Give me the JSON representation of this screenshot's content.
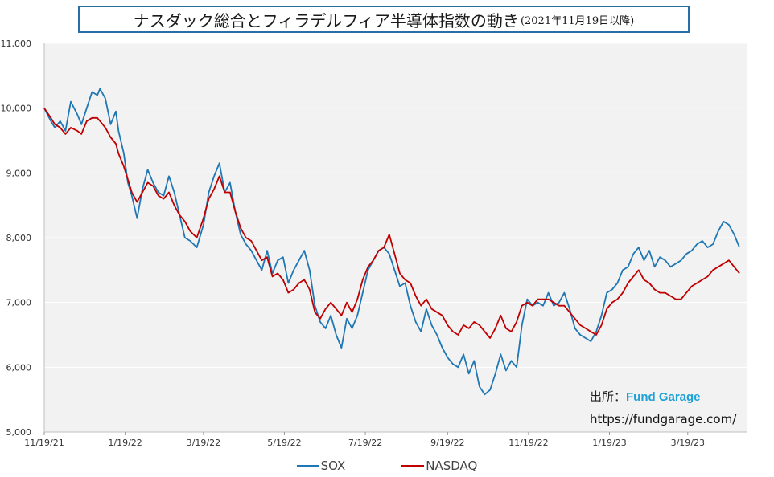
{
  "title": {
    "main": "ナスダック総合とフィラデルフィア半導体指数の動き",
    "sub": "(2021年11月19日以降)"
  },
  "source": {
    "label": "出所：",
    "brand": "Fund Garage",
    "url": "https://fundgarage.com/"
  },
  "colors": {
    "sox": "#1f77b4",
    "nasdaq": "#c00000",
    "plot_bg": "#f2f2f2",
    "grid": "#ffffff"
  },
  "chart_data": {
    "type": "line",
    "title": "ナスダック総合とフィラデルフィア半導体指数の動き(2021年11月19日以降)",
    "xlabel": "",
    "ylabel": "",
    "ylim": [
      5000,
      11000
    ],
    "yticks": [
      5000,
      6000,
      7000,
      8000,
      9000,
      10000,
      11000
    ],
    "ytick_labels": [
      "5,000",
      "6,000",
      "7,000",
      "8,000",
      "9,000",
      "10,000",
      "11,000"
    ],
    "x_days_range": [
      0,
      530
    ],
    "xticks": [
      {
        "day": 0,
        "label": "11/19/21"
      },
      {
        "day": 61,
        "label": "1/19/22"
      },
      {
        "day": 120,
        "label": "3/19/22"
      },
      {
        "day": 181,
        "label": "5/19/22"
      },
      {
        "day": 242,
        "label": "7/19/22"
      },
      {
        "day": 304,
        "label": "9/19/22"
      },
      {
        "day": 365,
        "label": "11/19/22"
      },
      {
        "day": 426,
        "label": "1/19/23"
      },
      {
        "day": 485,
        "label": "3/19/23"
      }
    ],
    "grid": true,
    "legend_position": "bottom",
    "series": [
      {
        "name": "SOX",
        "color": "#1f77b4",
        "x": [
          0,
          5,
          8,
          12,
          16,
          20,
          25,
          28,
          32,
          36,
          40,
          42,
          46,
          50,
          54,
          56,
          60,
          63,
          66,
          70,
          74,
          78,
          82,
          86,
          90,
          94,
          98,
          102,
          106,
          110,
          115,
          120,
          124,
          128,
          132,
          136,
          140,
          144,
          148,
          152,
          156,
          160,
          164,
          168,
          172,
          176,
          180,
          184,
          188,
          192,
          196,
          200,
          204,
          208,
          212,
          216,
          220,
          224,
          228,
          232,
          236,
          240,
          244,
          248,
          252,
          256,
          260,
          264,
          268,
          272,
          276,
          280,
          284,
          288,
          292,
          296,
          300,
          304,
          308,
          312,
          316,
          320,
          324,
          328,
          332,
          336,
          340,
          344,
          348,
          352,
          356,
          360,
          364,
          368,
          372,
          376,
          380,
          384,
          388,
          392,
          396,
          400,
          404,
          408,
          412,
          416,
          420,
          424,
          428,
          432,
          436,
          440,
          444,
          448,
          452,
          456,
          460,
          464,
          468,
          472,
          476,
          480,
          484,
          488,
          492,
          496,
          500,
          504,
          508,
          512,
          516,
          520,
          524
        ],
        "values": [
          10000,
          9800,
          9700,
          9800,
          9650,
          10100,
          9900,
          9750,
          10000,
          10250,
          10200,
          10300,
          10150,
          9750,
          9950,
          9650,
          9300,
          8850,
          8650,
          8300,
          8750,
          9050,
          8850,
          8700,
          8650,
          8950,
          8700,
          8350,
          8000,
          7950,
          7850,
          8200,
          8700,
          8950,
          9150,
          8700,
          8850,
          8400,
          8050,
          7900,
          7800,
          7650,
          7500,
          7800,
          7450,
          7650,
          7700,
          7300,
          7500,
          7650,
          7800,
          7500,
          6950,
          6700,
          6600,
          6800,
          6500,
          6300,
          6750,
          6600,
          6800,
          7150,
          7500,
          7650,
          7800,
          7850,
          7750,
          7500,
          7250,
          7300,
          6950,
          6700,
          6550,
          6900,
          6650,
          6500,
          6300,
          6150,
          6050,
          6000,
          6200,
          5900,
          6100,
          5700,
          5580,
          5650,
          5900,
          6200,
          5950,
          6100,
          6000,
          6650,
          7050,
          6950,
          7000,
          6950,
          7150,
          6950,
          7000,
          7150,
          6900,
          6600,
          6500,
          6450,
          6400,
          6550,
          6800,
          7150,
          7200,
          7300,
          7500,
          7550,
          7750,
          7850,
          7650,
          7800,
          7550,
          7700,
          7650,
          7550,
          7600,
          7650,
          7750,
          7800,
          7900,
          7950,
          7850,
          7900,
          8100,
          8250,
          8200,
          8050,
          7850
        ]
      },
      {
        "name": "NASDAQ",
        "color": "#c00000",
        "x": [
          0,
          5,
          8,
          12,
          16,
          20,
          25,
          28,
          32,
          36,
          40,
          42,
          46,
          50,
          54,
          56,
          60,
          63,
          66,
          70,
          74,
          78,
          82,
          86,
          90,
          94,
          98,
          102,
          106,
          110,
          115,
          120,
          124,
          128,
          132,
          136,
          140,
          144,
          148,
          152,
          156,
          160,
          164,
          168,
          172,
          176,
          180,
          184,
          188,
          192,
          196,
          200,
          204,
          208,
          212,
          216,
          220,
          224,
          228,
          232,
          236,
          240,
          244,
          248,
          252,
          256,
          260,
          264,
          268,
          272,
          276,
          280,
          284,
          288,
          292,
          296,
          300,
          304,
          308,
          312,
          316,
          320,
          324,
          328,
          332,
          336,
          340,
          344,
          348,
          352,
          356,
          360,
          364,
          368,
          372,
          376,
          380,
          384,
          388,
          392,
          396,
          400,
          404,
          408,
          412,
          416,
          420,
          424,
          428,
          432,
          436,
          440,
          444,
          448,
          452,
          456,
          460,
          464,
          468,
          472,
          476,
          480,
          484,
          488,
          492,
          496,
          500,
          504,
          508,
          512,
          516,
          520,
          524
        ],
        "values": [
          10000,
          9850,
          9750,
          9700,
          9600,
          9700,
          9650,
          9600,
          9800,
          9850,
          9850,
          9800,
          9700,
          9550,
          9450,
          9300,
          9100,
          8900,
          8700,
          8550,
          8700,
          8850,
          8800,
          8650,
          8600,
          8700,
          8500,
          8350,
          8250,
          8100,
          8000,
          8300,
          8600,
          8750,
          8950,
          8700,
          8700,
          8400,
          8150,
          8000,
          7950,
          7800,
          7650,
          7700,
          7400,
          7450,
          7350,
          7150,
          7200,
          7300,
          7350,
          7200,
          6850,
          6750,
          6900,
          7000,
          6900,
          6800,
          7000,
          6850,
          7050,
          7350,
          7550,
          7650,
          7800,
          7850,
          8050,
          7750,
          7450,
          7350,
          7300,
          7100,
          6950,
          7050,
          6900,
          6850,
          6800,
          6650,
          6550,
          6500,
          6650,
          6600,
          6700,
          6650,
          6550,
          6450,
          6600,
          6800,
          6600,
          6550,
          6700,
          6950,
          7000,
          6950,
          7050,
          7050,
          7050,
          7000,
          6950,
          6950,
          6850,
          6750,
          6650,
          6600,
          6550,
          6500,
          6650,
          6900,
          7000,
          7050,
          7150,
          7300,
          7400,
          7500,
          7350,
          7300,
          7200,
          7150,
          7150,
          7100,
          7050,
          7050,
          7150,
          7250,
          7300,
          7350,
          7400,
          7500,
          7550,
          7600,
          7650,
          7550,
          7450
        ]
      }
    ]
  }
}
